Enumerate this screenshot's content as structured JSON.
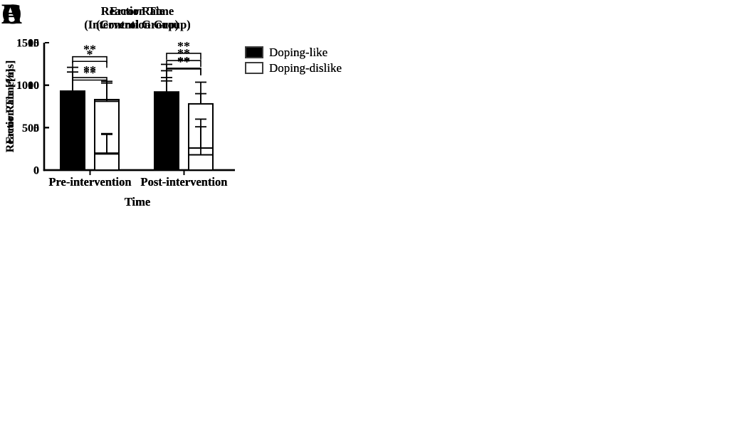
{
  "figure": {
    "panel_letters": [
      "A",
      "B",
      "C",
      "D"
    ],
    "background_color": "#ffffff",
    "ink_color": "#000000"
  },
  "chart_data": [
    {
      "panel_label": "A",
      "type": "bar",
      "title_lines": [
        "Reaction Time",
        "(Intervention Group)"
      ],
      "ylabel": "Reaction Time[ms]",
      "xlabel": "Time",
      "ylim": [
        0,
        1500
      ],
      "yticks": [
        0,
        500,
        1000,
        1500
      ],
      "categories": [
        "Pre-intervention",
        "Post-intervention"
      ],
      "series": [
        {
          "name": "Doping-like",
          "fill": "#000000",
          "values": [
            915,
            845
          ],
          "error_top": [
            1155,
            1090
          ]
        },
        {
          "name": "Doping-dislike",
          "fill": "#ffffff",
          "values": [
            830,
            730
          ],
          "error_top": [
            1045,
            900
          ]
        }
      ],
      "significance": [
        {
          "category_index": 0,
          "category": "Pre-intervention",
          "label": "*",
          "bracket_top": 1280
        },
        {
          "category_index": 1,
          "category": "Post-intervention",
          "label": "**",
          "bracket_top": 1200
        }
      ],
      "legend": {
        "position": "right",
        "entries": [
          "Doping-like",
          "Doping-dislike"
        ]
      },
      "grid": false
    },
    {
      "panel_label": "B",
      "type": "bar",
      "title_lines": [
        "Reaction Time",
        "(Control Group)"
      ],
      "ylabel": "Reaction Time[ms]",
      "xlabel": "Time",
      "ylim": [
        0,
        1500
      ],
      "yticks": [
        0,
        500,
        1000,
        1500
      ],
      "categories": [
        "Pre-intervention",
        "Post-intervention"
      ],
      "series": [
        {
          "name": "Doping-like",
          "fill": "#000000",
          "values": [
            930,
            920
          ],
          "error_top": [
            1210,
            1245
          ]
        },
        {
          "name": "Doping-dislike",
          "fill": "#ffffff",
          "values": [
            810,
            780
          ],
          "error_top": [
            1025,
            1035
          ]
        }
      ],
      "significance": [
        {
          "category_index": 0,
          "category": "Pre-intervention",
          "label": "**",
          "bracket_top": 1335
        },
        {
          "category_index": 1,
          "category": "Post-intervention",
          "label": "**",
          "bracket_top": 1375
        }
      ],
      "legend": {
        "position": "right",
        "entries": [
          "Doping-like",
          "Doping-dislike"
        ]
      },
      "grid": false
    },
    {
      "panel_label": "C",
      "type": "bar",
      "title_lines": [
        "Error Rate",
        "(Intervention Group)"
      ],
      "ylabel": "Error Rate [%]",
      "xlabel": "Time",
      "ylim": [
        0,
        15
      ],
      "yticks": [
        0,
        5,
        10,
        15
      ],
      "categories": [
        "Pre-intervention",
        "Post-intervention"
      ],
      "series": [
        {
          "name": "Doping-like",
          "fill": "#000000",
          "values": [
            4.6,
            5.9
          ],
          "error_top": [
            9.3,
            11.7
          ]
        },
        {
          "name": "Doping-dislike",
          "fill": "#ffffff",
          "values": [
            2.0,
            2.6
          ],
          "error_top": [
            4.3,
            6.0
          ]
        }
      ],
      "significance": [
        {
          "category_index": 0,
          "category": "Pre-intervention",
          "label": "**",
          "bracket_top": 10.6
        },
        {
          "category_index": 1,
          "category": "Post-intervention",
          "label": "**",
          "bracket_top": 12.9
        }
      ],
      "legend": {
        "position": "right",
        "entries": [
          "Doping-like",
          "Doping-dislike"
        ]
      },
      "grid": false
    },
    {
      "panel_label": "D",
      "type": "bar",
      "title_lines": [
        "Error Rate",
        "(Control Group)"
      ],
      "ylabel": "Error Rate [%]",
      "xlabel": "Time",
      "ylim": [
        0,
        15
      ],
      "yticks": [
        0,
        5,
        10,
        15
      ],
      "categories": [
        "Pre-intervention",
        "Post-intervention"
      ],
      "series": [
        {
          "name": "Doping-like",
          "fill": "#000000",
          "values": [
            4.4,
            4.3
          ],
          "error_top": [
            9.2,
            10.5
          ]
        },
        {
          "name": "Doping-dislike",
          "fill": "#ffffff",
          "values": [
            1.9,
            1.8
          ],
          "error_top": [
            4.2,
            5.1
          ]
        }
      ],
      "significance": [
        {
          "category_index": 0,
          "category": "Pre-intervention",
          "label": "**",
          "bracket_top": 10.9
        },
        {
          "category_index": 1,
          "category": "Post-intervention",
          "label": "**",
          "bracket_top": 11.9
        }
      ],
      "legend": {
        "position": "right",
        "entries": [
          "Doping-like",
          "Doping-dislike"
        ]
      },
      "grid": false
    }
  ]
}
